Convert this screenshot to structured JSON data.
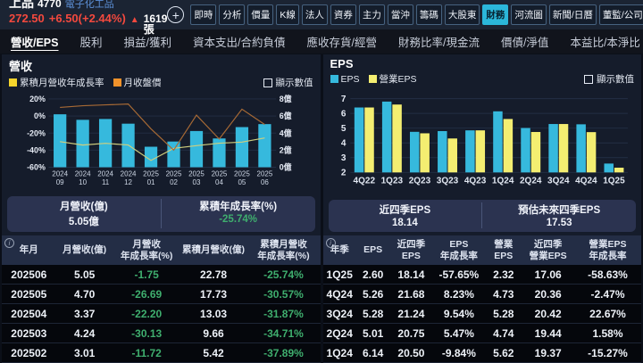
{
  "header": {
    "stock_name": "上品",
    "stock_code": "4770",
    "industry_tag": "電子化工品",
    "price": "272.50",
    "change": "+6.50(+2.44%)",
    "volume": "1619張",
    "icons": {
      "add": "+",
      "up_arrow": "▲",
      "info": "i"
    },
    "tabs": [
      {
        "label": "即時",
        "active": false
      },
      {
        "label": "分析",
        "active": false
      },
      {
        "label": "價量",
        "active": false
      },
      {
        "label": "K線",
        "active": false
      },
      {
        "label": "法人",
        "active": false
      },
      {
        "label": "資券",
        "active": false
      },
      {
        "label": "主力",
        "active": false
      },
      {
        "label": "當沖",
        "active": false
      },
      {
        "label": "籌碼",
        "active": false
      },
      {
        "label": "大股東",
        "active": false
      },
      {
        "label": "財務",
        "active": true
      },
      {
        "label": "河流圖",
        "active": false
      },
      {
        "label": "新聞/日曆",
        "active": false
      },
      {
        "label": "董監/公司",
        "active": false
      }
    ]
  },
  "subnav": {
    "items": [
      {
        "label": "營收/EPS",
        "active": true
      },
      {
        "label": "股利",
        "active": false
      },
      {
        "label": "損益/獲利",
        "active": false
      },
      {
        "label": "資本支出/合約負債",
        "active": false
      },
      {
        "label": "應收存貨/經營",
        "active": false
      },
      {
        "label": "財務比率/現金流",
        "active": false
      },
      {
        "label": "價債/淨值",
        "active": false
      },
      {
        "label": "本益比/本淨比",
        "active": false
      }
    ]
  },
  "revenue_panel": {
    "title": "營收",
    "legend": [
      {
        "label": "累積月營收年成長率",
        "color": "#f5d42c"
      },
      {
        "label": "月收盤價",
        "color": "#f0922b"
      }
    ],
    "show_values_label": "顯示數值",
    "summary": [
      {
        "label": "月營收(億)",
        "value": "5.05億",
        "green": false
      },
      {
        "label": "累積年成長率(%)",
        "value": "-25.74%",
        "green": true
      }
    ],
    "table": {
      "headers": [
        "年月",
        "月營收(億)",
        "月營收\n年成長率(%)",
        "累積月營收(億)",
        "累積月營收\n年成長率(%)"
      ],
      "green_columns": [
        2,
        4
      ],
      "rows": [
        [
          "202506",
          "5.05",
          "-1.75",
          "22.78",
          "-25.74%"
        ],
        [
          "202505",
          "4.70",
          "-26.69",
          "17.73",
          "-30.57%"
        ],
        [
          "202504",
          "3.37",
          "-22.20",
          "13.03",
          "-31.87%"
        ],
        [
          "202503",
          "4.24",
          "-30.13",
          "9.66",
          "-34.71%"
        ],
        [
          "202502",
          "3.01",
          "-11.72",
          "5.42",
          "-37.89%"
        ]
      ]
    }
  },
  "eps_panel": {
    "title": "EPS",
    "legend": [
      {
        "label": "EPS",
        "color": "#36b9dd"
      },
      {
        "label": "營業EPS",
        "color": "#f4ee71"
      }
    ],
    "show_values_label": "顯示數值",
    "summary": [
      {
        "label": "近四季EPS",
        "value": "18.14",
        "green": false
      },
      {
        "label": "預估未來四季EPS",
        "value": "17.53",
        "green": false
      }
    ],
    "table": {
      "headers": [
        "年季",
        "EPS",
        "近四季\nEPS",
        "EPS\n年成長率",
        "營業\nEPS",
        "近四季\n營業EPS",
        "營業EPS\n年成長率"
      ],
      "green_columns": [],
      "rows": [
        [
          "1Q25",
          "2.60",
          "18.14",
          "-57.65%",
          "2.32",
          "17.06",
          "-58.63%"
        ],
        [
          "4Q24",
          "5.26",
          "21.68",
          "8.23%",
          "4.73",
          "20.36",
          "-2.47%"
        ],
        [
          "3Q24",
          "5.28",
          "21.24",
          "9.54%",
          "5.28",
          "20.42",
          "22.67%"
        ],
        [
          "2Q24",
          "5.01",
          "20.75",
          "5.47%",
          "4.74",
          "19.44",
          "1.58%"
        ],
        [
          "1Q24",
          "6.14",
          "20.50",
          "-9.84%",
          "5.62",
          "19.37",
          "-15.27%"
        ]
      ]
    }
  },
  "chart_data": [
    {
      "type": "bar",
      "title": "營收",
      "categories": [
        "2024/09",
        "2024/10",
        "2024/11",
        "2024/12",
        "2025/01",
        "2025/02",
        "2025/03",
        "2025/04",
        "2025/05",
        "2025/06"
      ],
      "series": [
        {
          "name": "月營收(億)",
          "kind": "bar",
          "axis": "right",
          "color": "#36b9dd",
          "values": [
            6.2,
            5.55,
            5.65,
            5.1,
            2.4,
            3.01,
            4.24,
            3.37,
            4.7,
            5.05
          ]
        },
        {
          "name": "累積月營收年成長率",
          "kind": "line",
          "axis": "left",
          "color": "#cfcf7e",
          "values": [
            -30,
            -34,
            -32,
            -34,
            -52,
            -37.89,
            -34.71,
            -31.87,
            -30.57,
            -25.74
          ]
        },
        {
          "name": "月收盤價",
          "kind": "line",
          "axis": "left",
          "color": "#a86a35",
          "note": "price curve plotted against hidden price scale, values given in left-axis % coordinates",
          "values": [
            10,
            12,
            13,
            14,
            -15,
            -40,
            1,
            -27,
            8,
            -10
          ]
        }
      ],
      "left_axis": {
        "min": -60,
        "max": 20,
        "ticks": [
          20,
          0,
          -20,
          -40,
          -60
        ],
        "tick_labels": [
          "20%",
          "0%",
          "-20%",
          "-40%",
          "-60%"
        ]
      },
      "right_axis": {
        "min": 0,
        "max": 8,
        "tick_labels": [
          "8億",
          "6億",
          "4億",
          "2億",
          "0億"
        ]
      },
      "legend_position": "top-left",
      "grid": true
    },
    {
      "type": "bar",
      "title": "EPS",
      "categories": [
        "4Q22",
        "1Q23",
        "2Q23",
        "3Q23",
        "4Q23",
        "1Q24",
        "2Q24",
        "3Q24",
        "4Q24",
        "1Q25"
      ],
      "series": [
        {
          "name": "EPS",
          "color": "#36b9dd",
          "values": [
            6.4,
            6.8,
            4.75,
            4.8,
            4.85,
            6.14,
            5.01,
            5.28,
            5.26,
            2.6
          ]
        },
        {
          "name": "營業EPS",
          "color": "#f4ee71",
          "values": [
            6.4,
            6.6,
            4.65,
            4.3,
            4.85,
            5.62,
            4.74,
            5.28,
            4.73,
            2.32
          ]
        }
      ],
      "y_axis": {
        "min": 2,
        "max": 7.3,
        "ticks": [
          7,
          6,
          5,
          4,
          3,
          2
        ]
      },
      "legend_position": "top-left",
      "grid": true
    }
  ]
}
